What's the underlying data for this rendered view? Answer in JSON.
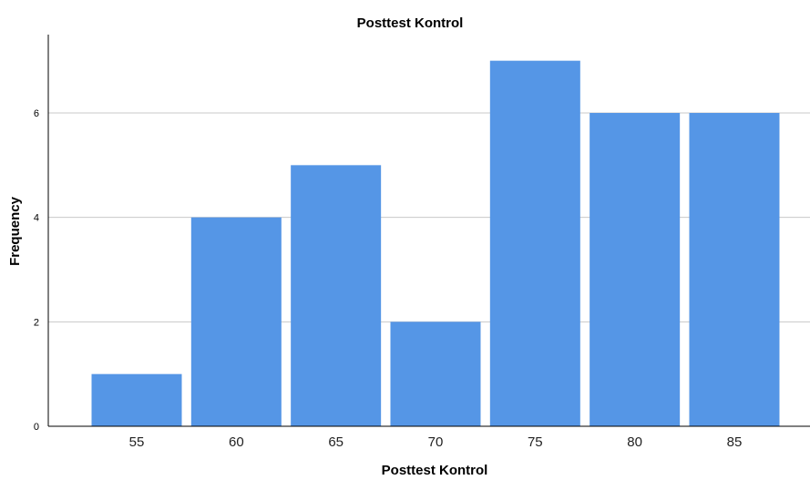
{
  "chart_data": {
    "type": "bar",
    "title": "Posttest Kontrol",
    "xlabel": "Posttest Kontrol",
    "ylabel": "Frequency",
    "categories": [
      "55",
      "60",
      "65",
      "70",
      "75",
      "80",
      "85"
    ],
    "values": [
      1,
      4,
      5,
      2,
      7,
      6,
      6
    ],
    "ylim": [
      0,
      7.5
    ],
    "yticks": [
      "0",
      "2",
      "4",
      "6"
    ],
    "grid": true,
    "bar_color": "#5596E6",
    "grid_color": "#c8c8c8",
    "axis_color": "#000000"
  }
}
